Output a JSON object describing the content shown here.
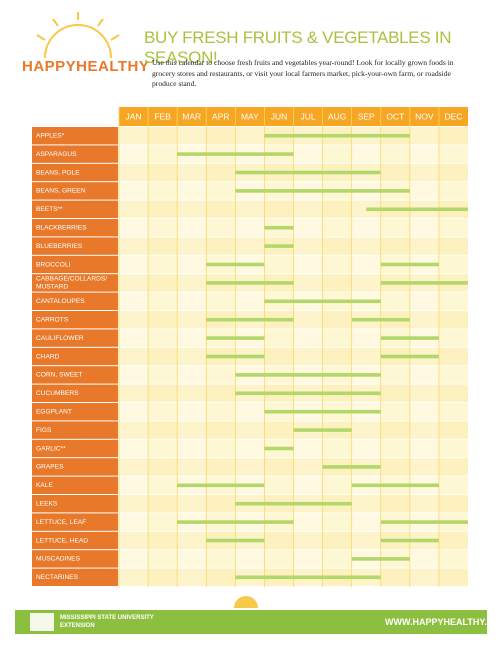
{
  "header": {
    "logo": "HAPPYHEALTHY",
    "title": "BUY FRESH FRUITS & VEGETABLES IN SEASON!",
    "text": "Use this calendar to choose fresh fruits and vegetables year-round! Look for locally grown foods in grocery stores and restaurants, or visit your local farmers market, pick-your-own farm, or roadside produce stand."
  },
  "months": [
    "JAN",
    "FEB",
    "MAR",
    "APR",
    "MAY",
    "JUN",
    "JUL",
    "AUG",
    "SEP",
    "OCT",
    "NOV",
    "DEC"
  ],
  "rows": [
    {
      "name": "APPLES*",
      "seasons": [
        [
          5,
          10
        ]
      ]
    },
    {
      "name": "ASPARAGUS",
      "seasons": [
        [
          2,
          6
        ]
      ]
    },
    {
      "name": "BEANS, POLE",
      "seasons": [
        [
          4,
          9
        ]
      ]
    },
    {
      "name": "BEANS, GREEN",
      "seasons": [
        [
          4,
          10
        ]
      ]
    },
    {
      "name": "BEETS**",
      "seasons": [
        [
          8.5,
          12
        ]
      ]
    },
    {
      "name": "BLACKBERRIES",
      "seasons": [
        [
          5,
          6
        ]
      ]
    },
    {
      "name": "BLUEBERRIES",
      "seasons": [
        [
          5,
          6
        ]
      ]
    },
    {
      "name": "BROCCOLI",
      "seasons": [
        [
          3,
          5
        ],
        [
          9,
          11
        ]
      ]
    },
    {
      "name": "CABBAGE/COLLARDS/ MUSTARD",
      "seasons": [
        [
          3,
          6
        ],
        [
          9,
          12
        ]
      ]
    },
    {
      "name": "CANTALOUPES",
      "seasons": [
        [
          5,
          9
        ]
      ]
    },
    {
      "name": "CARROTS",
      "seasons": [
        [
          3,
          6
        ],
        [
          8,
          10
        ]
      ]
    },
    {
      "name": "CAULIFLOWER",
      "seasons": [
        [
          3,
          5
        ],
        [
          9,
          11
        ]
      ]
    },
    {
      "name": "CHARD",
      "seasons": [
        [
          3,
          5
        ],
        [
          9,
          11
        ]
      ]
    },
    {
      "name": "CORN, SWEET",
      "seasons": [
        [
          4,
          9
        ]
      ]
    },
    {
      "name": "CUCUMBERS",
      "seasons": [
        [
          4,
          9
        ]
      ]
    },
    {
      "name": "EGGPLANT",
      "seasons": [
        [
          5,
          9
        ]
      ]
    },
    {
      "name": "FIGS",
      "seasons": [
        [
          6,
          8
        ]
      ]
    },
    {
      "name": "GARLIC**",
      "seasons": [
        [
          5,
          6
        ]
      ]
    },
    {
      "name": "GRAPES",
      "seasons": [
        [
          7,
          9
        ]
      ]
    },
    {
      "name": "KALE",
      "seasons": [
        [
          2,
          5
        ],
        [
          8,
          11
        ]
      ]
    },
    {
      "name": "LEEKS",
      "seasons": [
        [
          4,
          8
        ]
      ]
    },
    {
      "name": "LETTUCE, LEAF",
      "seasons": [
        [
          2,
          6
        ],
        [
          9,
          12
        ]
      ]
    },
    {
      "name": "LETTUCE, HEAD",
      "seasons": [
        [
          3,
          5
        ],
        [
          9,
          11
        ]
      ]
    },
    {
      "name": "MUSCADINES",
      "seasons": [
        [
          8,
          10
        ]
      ]
    },
    {
      "name": "NECTARINES",
      "seasons": [
        [
          4,
          9
        ]
      ]
    }
  ],
  "footer": {
    "university": "MISSISSIPPI STATE UNIVERSITY",
    "extension": "EXTENSION",
    "url": "WWW.HAPPYHEALTHY.MS"
  }
}
